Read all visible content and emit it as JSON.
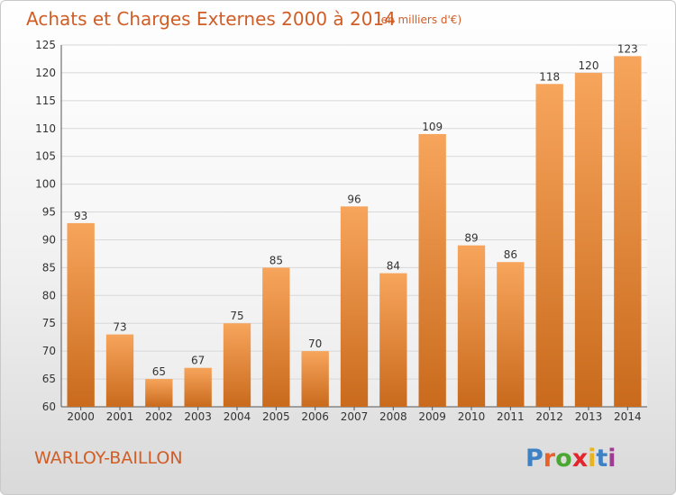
{
  "title": "Achats et Charges Externes 2000 à 2014",
  "subtitle": "(en milliers d'€)",
  "town": "WARLOY-BAILLON",
  "logo": {
    "text": "Proxiti",
    "letter_colors": [
      "#3f82c4",
      "#e8622a",
      "#4aa832",
      "#e3262b",
      "#e8b321",
      "#3f82c4",
      "#9c3d92"
    ]
  },
  "colors": {
    "title": "#d15d26",
    "bar_top": "#f7a55c",
    "bar_bottom": "#c96a1c",
    "grid": "#d8d8d8"
  },
  "chart_data": {
    "type": "bar",
    "title": "Achats et Charges Externes 2000 à 2014",
    "subtitle": "(en milliers d'€)",
    "categories": [
      "2000",
      "2001",
      "2002",
      "2003",
      "2004",
      "2005",
      "2006",
      "2007",
      "2008",
      "2009",
      "2010",
      "2011",
      "2012",
      "2013",
      "2014"
    ],
    "values": [
      93,
      73,
      65,
      67,
      75,
      85,
      70,
      96,
      84,
      109,
      89,
      86,
      118,
      120,
      123
    ],
    "ylim": [
      60,
      125
    ],
    "yticks": [
      60,
      65,
      70,
      75,
      80,
      85,
      90,
      95,
      100,
      105,
      110,
      115,
      120,
      125
    ],
    "grid": true,
    "xlabel": "",
    "ylabel": ""
  }
}
